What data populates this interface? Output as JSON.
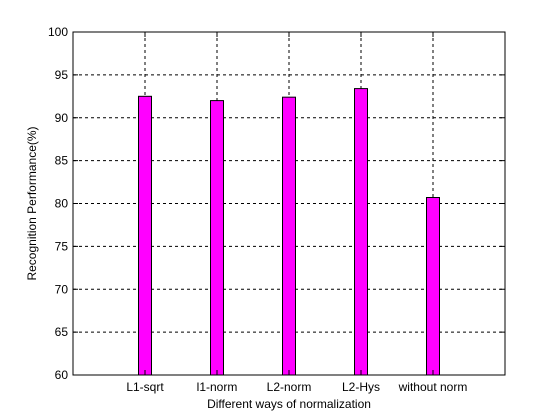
{
  "chart_data": {
    "type": "bar",
    "categories": [
      "L1-sqrt",
      "l1-norm",
      "L2-norm",
      "L2-Hys",
      "without norm"
    ],
    "values": [
      92.5,
      92.0,
      92.4,
      93.4,
      80.7
    ],
    "title": "",
    "xlabel": "Different ways of normalization",
    "ylabel": "Recognition Performance(%)",
    "ylim": [
      60,
      100
    ],
    "yticks": [
      60,
      65,
      70,
      75,
      80,
      85,
      90,
      95,
      100
    ],
    "grid": true,
    "grid_style": "dashed",
    "bar_color": "#ff00ff",
    "bar_edge_color": "#000000"
  }
}
